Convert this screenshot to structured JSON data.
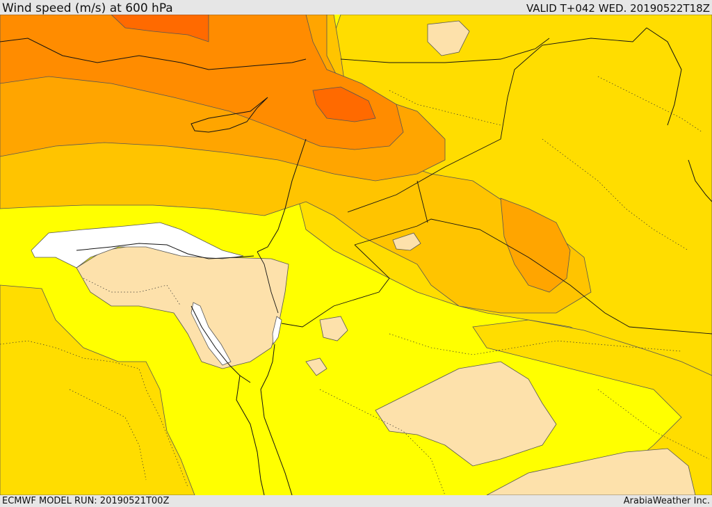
{
  "header": {
    "title": "Wind speed (m/s) at 600 hPa",
    "valid_time": "VALID T+042 WED. 20190522T18Z"
  },
  "footer": {
    "model_run": "ECMWF MODEL RUN: 20190521T00Z",
    "credit": "ArabiaWeather Inc."
  },
  "colors": {
    "calm": "#ffffff",
    "light": "#fde1ab",
    "low": "#ffff00",
    "moderate": "#ffdd00",
    "elevated": "#ffc400",
    "high": "#ffa500",
    "very_high": "#ff8c00",
    "extreme": "#ff6a00",
    "contour": "#555555",
    "border": "#111111"
  }
}
